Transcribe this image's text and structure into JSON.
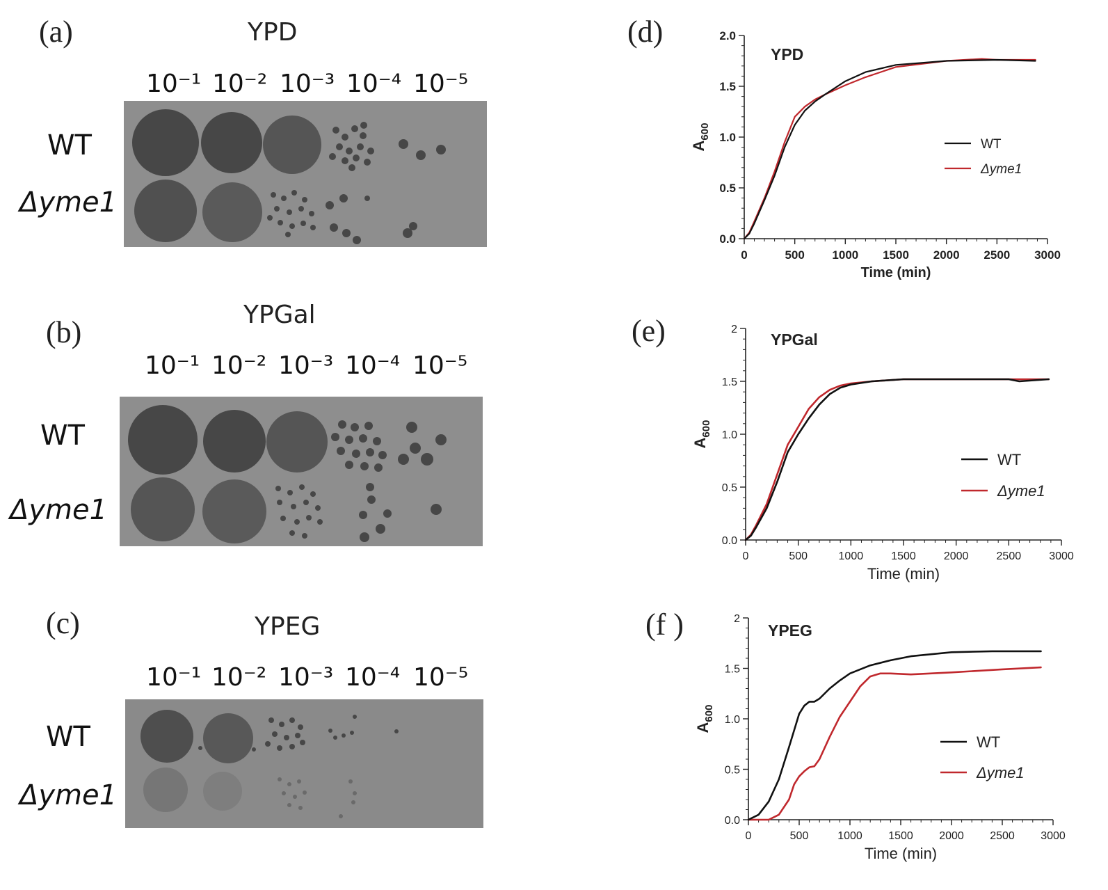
{
  "spot_panels": [
    {
      "id": "a",
      "label": "(a)",
      "medium": "YPD",
      "dilutions": [
        "10⁻¹",
        "10⁻²",
        "10⁻³",
        "10⁻⁴",
        "10⁻⁵"
      ],
      "strains": [
        "WT",
        "Δyme1"
      ]
    },
    {
      "id": "b",
      "label": "(b)",
      "medium": "YPGal",
      "dilutions": [
        "10⁻¹",
        "10⁻²",
        "10⁻³",
        "10⁻⁴",
        "10⁻⁵"
      ],
      "strains": [
        "WT",
        "Δyme1"
      ]
    },
    {
      "id": "c",
      "label": "(c)",
      "medium": "YPEG",
      "dilutions": [
        "10⁻¹",
        "10⁻²",
        "10⁻³",
        "10⁻⁴",
        "10⁻⁵"
      ],
      "strains": [
        "WT",
        "Δyme1"
      ]
    }
  ],
  "colors": {
    "wt_line": "#111111",
    "mutant_line": "#c0282d",
    "plate_bg": "#8c8c8c",
    "colony": "#4a4a4a"
  },
  "chart_data": [
    {
      "id": "d",
      "label": "(d)",
      "type": "line",
      "title": "YPD",
      "xlabel": "Time (min)",
      "ylabel_main": "A",
      "ylabel_sub": "600",
      "xlim": [
        0,
        3000
      ],
      "ylim": [
        0,
        2.0
      ],
      "xticks": [
        "0",
        "500",
        "1000",
        "1500",
        "2000",
        "2500",
        "3000"
      ],
      "yticks": [
        "0.0",
        "0.5",
        "1.0",
        "1.5",
        "2.0"
      ],
      "series": [
        {
          "name": "WT",
          "x": [
            0,
            50,
            100,
            200,
            300,
            400,
            500,
            600,
            700,
            800,
            1000,
            1200,
            1500,
            2000,
            2500,
            2880
          ],
          "y": [
            0.0,
            0.05,
            0.15,
            0.38,
            0.62,
            0.9,
            1.12,
            1.26,
            1.35,
            1.42,
            1.55,
            1.64,
            1.71,
            1.75,
            1.76,
            1.75
          ]
        },
        {
          "name": "Δyme1",
          "x": [
            0,
            50,
            100,
            200,
            300,
            400,
            500,
            600,
            700,
            800,
            1000,
            1200,
            1500,
            2000,
            2350,
            2500,
            2880
          ],
          "y": [
            0.0,
            0.06,
            0.17,
            0.4,
            0.66,
            0.95,
            1.2,
            1.3,
            1.37,
            1.42,
            1.51,
            1.59,
            1.69,
            1.75,
            1.77,
            1.76,
            1.76
          ]
        }
      ],
      "legend": "right"
    },
    {
      "id": "e",
      "label": "(e)",
      "type": "line",
      "title": "YPGal",
      "xlabel": "Time (min)",
      "ylabel_main": "A",
      "ylabel_sub": "600",
      "xlim": [
        0,
        3000
      ],
      "ylim": [
        0,
        2
      ],
      "xticks": [
        "0",
        "500",
        "1000",
        "1500",
        "2000",
        "2500",
        "3000"
      ],
      "yticks": [
        "0.0",
        "0.5",
        "1.0",
        "1.5",
        "2"
      ],
      "series": [
        {
          "name": "WT",
          "x": [
            0,
            50,
            100,
            200,
            300,
            400,
            500,
            600,
            700,
            800,
            900,
            1000,
            1200,
            1500,
            2000,
            2500,
            2600,
            2880
          ],
          "y": [
            0.0,
            0.04,
            0.12,
            0.3,
            0.55,
            0.83,
            1.0,
            1.15,
            1.28,
            1.38,
            1.44,
            1.47,
            1.5,
            1.52,
            1.52,
            1.52,
            1.5,
            1.52
          ]
        },
        {
          "name": "Δyme1",
          "x": [
            0,
            50,
            100,
            200,
            300,
            400,
            500,
            600,
            700,
            800,
            900,
            1000,
            1200,
            1500,
            2000,
            2500,
            2880
          ],
          "y": [
            0.0,
            0.05,
            0.14,
            0.34,
            0.62,
            0.9,
            1.07,
            1.24,
            1.35,
            1.42,
            1.46,
            1.48,
            1.5,
            1.52,
            1.52,
            1.52,
            1.52
          ]
        }
      ],
      "legend": "right"
    },
    {
      "id": "f",
      "label": "(f )",
      "type": "line",
      "title": "YPEG",
      "xlabel": "Time (min)",
      "ylabel_main": "A",
      "ylabel_sub": "600",
      "xlim": [
        0,
        3000
      ],
      "ylim": [
        0,
        2
      ],
      "xticks": [
        "0",
        "500",
        "1000",
        "1500",
        "2000",
        "2500",
        "3000"
      ],
      "yticks": [
        "0.0",
        "0.5",
        "1.0",
        "1.5",
        "2"
      ],
      "series": [
        {
          "name": "WT",
          "x": [
            0,
            100,
            200,
            300,
            400,
            500,
            550,
            600,
            650,
            700,
            800,
            900,
            1000,
            1200,
            1400,
            1600,
            2000,
            2400,
            2880
          ],
          "y": [
            0.0,
            0.05,
            0.18,
            0.4,
            0.72,
            1.05,
            1.13,
            1.17,
            1.17,
            1.2,
            1.3,
            1.38,
            1.45,
            1.53,
            1.58,
            1.62,
            1.66,
            1.67,
            1.67
          ]
        },
        {
          "name": "Δyme1",
          "x": [
            0,
            200,
            300,
            400,
            450,
            500,
            550,
            600,
            650,
            700,
            800,
            900,
            1000,
            1100,
            1200,
            1300,
            1400,
            1600,
            2000,
            2500,
            2880
          ],
          "y": [
            0.0,
            0.0,
            0.05,
            0.2,
            0.35,
            0.43,
            0.48,
            0.52,
            0.53,
            0.6,
            0.82,
            1.02,
            1.17,
            1.32,
            1.42,
            1.45,
            1.45,
            1.44,
            1.46,
            1.49,
            1.51
          ]
        }
      ],
      "legend": "right"
    }
  ]
}
